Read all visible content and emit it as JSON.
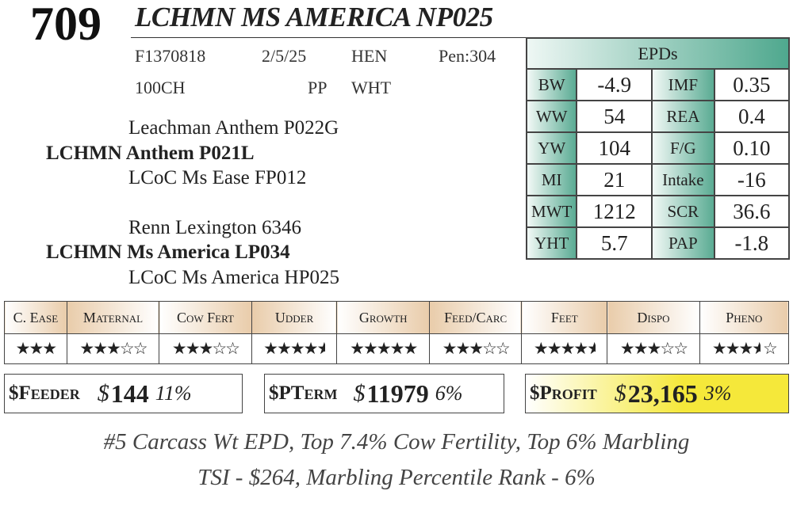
{
  "lot_number": "709",
  "animal_name": "LCHMN MS AMERICA NP025",
  "info": {
    "reg": "F1370818",
    "birth_date": "2/5/25",
    "sex": "HEN",
    "pen": "Pen:304",
    "breed": "100CH",
    "polled": "PP",
    "color": "WHT"
  },
  "pedigree": {
    "sire_sire": "Leachman Anthem P022G",
    "sire": "LCHMN Anthem P021L",
    "sire_dam": "LCoC Ms Ease FP012",
    "dam_sire": "Renn Lexington 6346",
    "dam": "LCHMN Ms America LP034",
    "dam_dam": "LCoC Ms America HP025"
  },
  "epds": {
    "title": "EPDs",
    "rows": [
      {
        "l1": "BW",
        "v1": "-4.9",
        "l2": "IMF",
        "v2": "0.35"
      },
      {
        "l1": "WW",
        "v1": "54",
        "l2": "REA",
        "v2": "0.4"
      },
      {
        "l1": "YW",
        "v1": "104",
        "l2": "F/G",
        "v2": "0.10"
      },
      {
        "l1": "MI",
        "v1": "21",
        "l2": "Intake",
        "v2": "-16"
      },
      {
        "l1": "MWT",
        "v1": "1212",
        "l2": "SCR",
        "v2": "36.6"
      },
      {
        "l1": "YHT",
        "v1": "5.7",
        "l2": "PAP",
        "v2": "-1.8"
      }
    ]
  },
  "traits": [
    {
      "label": "C. Ease",
      "stars": 3,
      "max": 3
    },
    {
      "label": "Maternal",
      "stars": 3,
      "max": 5
    },
    {
      "label": "Cow Fert",
      "stars": 3,
      "max": 5
    },
    {
      "label": "Udder",
      "stars": 4.5,
      "max": 4.5
    },
    {
      "label": "Growth",
      "stars": 5,
      "max": 5
    },
    {
      "label": "Feed/Carc",
      "stars": 3,
      "max": 5
    },
    {
      "label": "Feet",
      "stars": 4.5,
      "max": 4.5
    },
    {
      "label": "Dispo",
      "stars": 3,
      "max": 5
    },
    {
      "label": "Pheno",
      "stars": 3.5,
      "max": 5
    }
  ],
  "indexes": {
    "feeder": {
      "label": "$Feeder",
      "currency": "$",
      "value": "144",
      "pct": "11%"
    },
    "pterm": {
      "label": "$PTerm",
      "currency": "$",
      "value": "11979",
      "pct": "6%"
    },
    "profit": {
      "label": "$Profit",
      "currency": "$",
      "value": "23,165",
      "pct": "3%",
      "highlight": "#f5e83a"
    }
  },
  "notes": [
    "#5 Carcass Wt EPD, Top 7.4% Cow Fertility, Top 6% Marbling",
    "TSI  -  $264, Marbling Percentile Rank  -  6%"
  ]
}
